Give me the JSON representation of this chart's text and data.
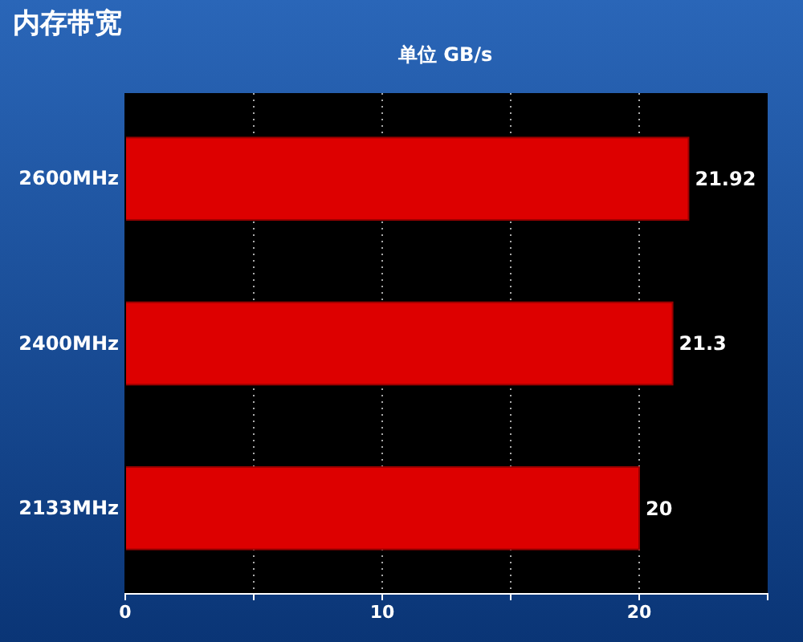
{
  "chart_data": {
    "type": "bar",
    "orientation": "horizontal",
    "title": "内存带宽",
    "subtitle": "单位 GB/s",
    "categories": [
      "2600MHz",
      "2400MHz",
      "2133MHz"
    ],
    "values": [
      21.92,
      21.3,
      20
    ],
    "color": "#dd0000",
    "xlim": [
      0,
      25
    ],
    "xticks": [
      0,
      {
        "value": 5,
        "label": null
      },
      10,
      {
        "value": 15,
        "label": null
      },
      20
    ],
    "grid": "x",
    "data_labels": true
  }
}
